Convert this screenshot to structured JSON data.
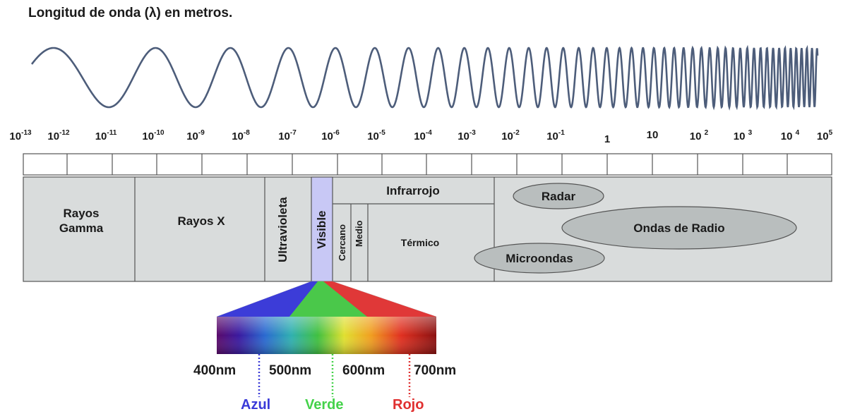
{
  "title": "Longitud de onda (λ) en metros.",
  "ticks": [
    {
      "base": "10",
      "exp": "-13"
    },
    {
      "base": "10",
      "exp": "-12"
    },
    {
      "base": "10",
      "exp": "-11"
    },
    {
      "base": "10",
      "exp": "-10"
    },
    {
      "base": "10",
      "exp": "-9"
    },
    {
      "base": "10",
      "exp": "-8"
    },
    {
      "base": "10",
      "exp": "-7"
    },
    {
      "base": "10",
      "exp": "-6"
    },
    {
      "base": "10",
      "exp": "-5"
    },
    {
      "base": "10",
      "exp": "-4"
    },
    {
      "base": "10",
      "exp": "-3"
    },
    {
      "base": "10",
      "exp": "-2"
    },
    {
      "base": "10",
      "exp": "-1"
    },
    {
      "base": "1",
      "exp": ""
    },
    {
      "base": "10",
      "exp": ""
    },
    {
      "base": "10 ",
      "exp": "2"
    },
    {
      "base": "10 ",
      "exp": "3"
    },
    {
      "base": "10 ",
      "exp": "4"
    },
    {
      "base": "10",
      "exp": "5"
    }
  ],
  "bands": {
    "gamma": "Rayos\nGamma",
    "xray": "Rayos X",
    "uv": "Ultravioleta",
    "visible": "Visible",
    "infrared": "Infrarrojo",
    "near": "Cercano",
    "medium": "Medio",
    "thermal": "Térmico",
    "radar": "Radar",
    "radio": "Ondas de Radio",
    "microwave": "Microondas"
  },
  "spectrum": {
    "nm400": "400nm",
    "nm500": "500nm",
    "nm600": "600nm",
    "nm700": "700nm",
    "blue": "Azul",
    "green": "Verde",
    "red": "Rojo"
  },
  "colors": {
    "blue": "#3a3ad8",
    "green": "#44d24a",
    "red": "#e03030",
    "band_fill": "#d9dcdc",
    "visible_fill": "#c8c8f5",
    "wave": "#4d5d7a"
  }
}
